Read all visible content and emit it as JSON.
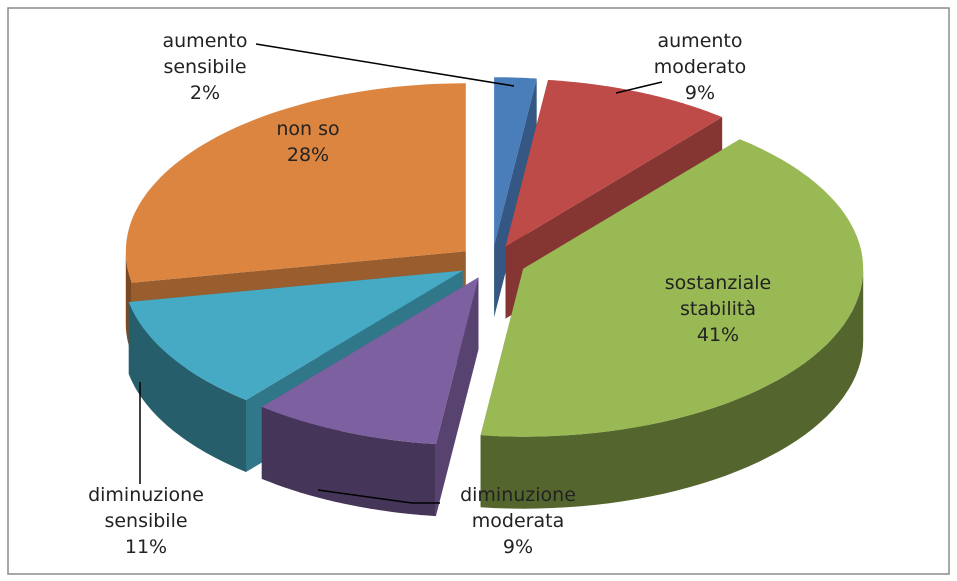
{
  "chart_data": {
    "type": "pie3d",
    "categories": [
      "aumento sensibile",
      "aumento moderato",
      "sostanziale stabilità",
      "diminuzione moderata",
      "diminuzione sensibile",
      "non so"
    ],
    "values": [
      2,
      9,
      41,
      9,
      11,
      28
    ],
    "value_labels": [
      "2%",
      "9%",
      "41%",
      "9%",
      "11%",
      "28%"
    ],
    "colors": [
      "#4a7ebb",
      "#be4b48",
      "#98b954",
      "#7d60a0",
      "#46aac5",
      "#dc8540"
    ]
  }
}
